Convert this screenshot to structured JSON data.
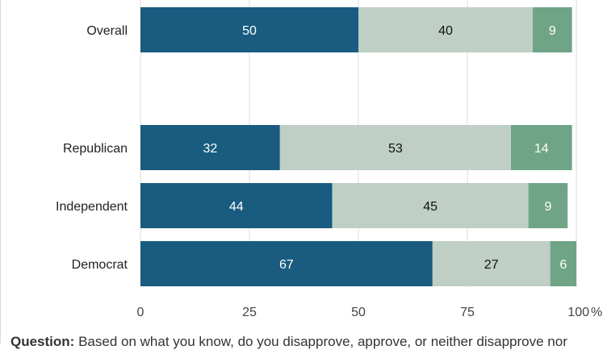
{
  "chart_data": {
    "type": "bar",
    "orientation": "horizontal",
    "stacked": true,
    "categories": [
      "Overall",
      "Republican",
      "Independent",
      "Democrat"
    ],
    "series": [
      {
        "values": [
          50,
          32,
          44,
          67
        ],
        "color": "#1a5c7f",
        "label_color": "#ffffff"
      },
      {
        "values": [
          40,
          53,
          45,
          27
        ],
        "color": "#bfcfc5",
        "label_color": "#111111"
      },
      {
        "values": [
          9,
          14,
          9,
          6
        ],
        "color": "#6fa487",
        "label_color": "#ffffff"
      }
    ],
    "xlim": [
      0,
      100
    ],
    "x_ticks": [
      "0",
      "25",
      "50",
      "75",
      "100"
    ],
    "x_unit": "%",
    "grid": true
  },
  "question": {
    "label": "Question:",
    "text": "Based on what you know, do you disapprove, approve, or neither disapprove nor"
  }
}
